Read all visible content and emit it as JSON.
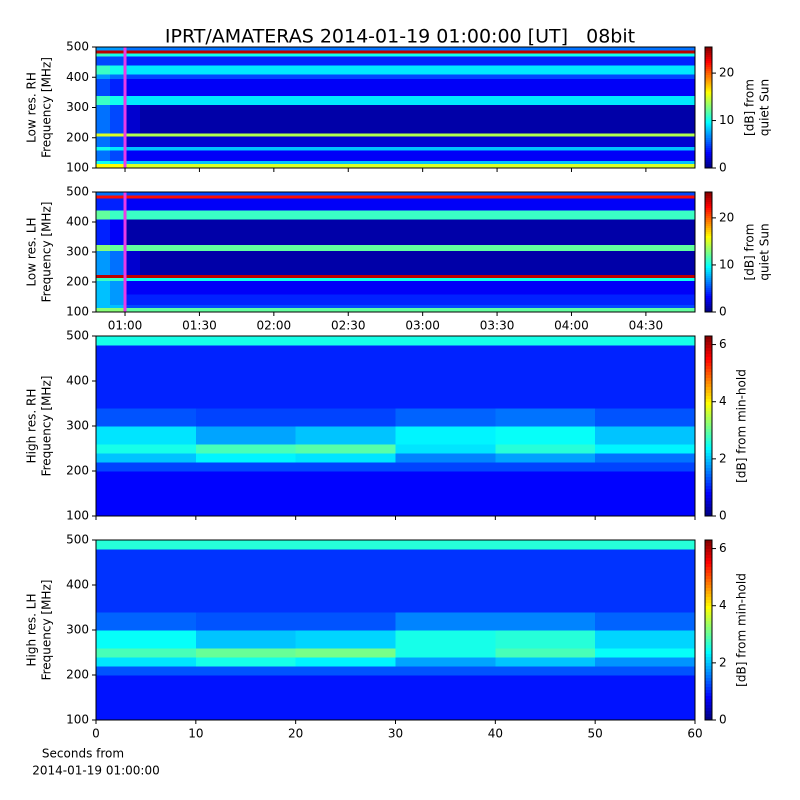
{
  "title": "IPRT/AMATERAS 2014-01-19 01:00:00 [UT]   08bit",
  "chart_data": [
    {
      "type": "heatmap",
      "ylabel": [
        "Low res. RH",
        "Frequency [MHz]"
      ],
      "colormap": "jet",
      "xlim": [
        48.3,
        289.8
      ],
      "ylim": [
        100,
        500
      ],
      "yticks": [
        100,
        200,
        300,
        400,
        500
      ],
      "xticks": [
        {
          "value": 60,
          "label": "01:00"
        },
        {
          "value": 90,
          "label": "01:30"
        },
        {
          "value": 120,
          "label": "02:00"
        },
        {
          "value": 150,
          "label": "02:30"
        },
        {
          "value": 180,
          "label": "03:00"
        },
        {
          "value": 210,
          "label": "03:30"
        },
        {
          "value": 240,
          "label": "04:00"
        },
        {
          "value": 270,
          "label": "04:30"
        }
      ],
      "xticklabels": false,
      "cursor": {
        "value": 60,
        "color": "#e83ce8"
      },
      "xbins": [
        48.3,
        54,
        60,
        66,
        289.8
      ],
      "ybins": [
        100,
        115,
        125,
        160,
        170,
        205,
        215,
        310,
        340,
        395,
        410,
        440,
        470,
        480,
        490,
        500
      ],
      "z": [
        [
          16,
          16,
          15,
          15
        ],
        [
          10,
          9,
          8,
          8
        ],
        [
          6,
          5,
          3,
          3
        ],
        [
          10,
          9,
          8,
          8
        ],
        [
          6,
          5,
          2,
          2
        ],
        [
          15,
          15,
          14,
          14
        ],
        [
          6,
          5,
          2,
          1
        ],
        [
          11,
          10,
          9,
          9
        ],
        [
          5,
          4,
          3,
          3
        ],
        [
          7,
          6,
          5,
          5
        ],
        [
          11,
          10,
          9,
          9
        ],
        [
          5,
          5,
          4,
          4
        ],
        [
          11,
          10,
          10,
          10
        ],
        [
          24,
          24,
          24,
          24
        ],
        [
          7,
          7,
          6,
          6
        ]
      ],
      "clim": [
        0,
        25.5
      ],
      "colorbar_ticks": [
        0,
        10,
        20
      ],
      "colorbar_label": [
        "[dB] from",
        "quiet Sun"
      ]
    },
    {
      "type": "heatmap",
      "ylabel": [
        "Low res. LH",
        "Frequency [MHz]"
      ],
      "colormap": "jet",
      "xlim": [
        48.3,
        289.8
      ],
      "ylim": [
        100,
        500
      ],
      "yticks": [
        100,
        200,
        300,
        400,
        500
      ],
      "xticks": [
        {
          "value": 60,
          "label": "01:00"
        },
        {
          "value": 90,
          "label": "01:30"
        },
        {
          "value": 120,
          "label": "02:00"
        },
        {
          "value": 150,
          "label": "02:30"
        },
        {
          "value": 180,
          "label": "03:00"
        },
        {
          "value": 210,
          "label": "03:30"
        },
        {
          "value": 240,
          "label": "04:00"
        },
        {
          "value": 270,
          "label": "04:30"
        }
      ],
      "xticklabels": true,
      "cursor": {
        "value": 60,
        "color": "#e83ce8"
      },
      "xbins": [
        48.3,
        54,
        60,
        66,
        289.8
      ],
      "ybins": [
        100,
        115,
        125,
        160,
        170,
        205,
        215,
        225,
        305,
        325,
        410,
        440,
        480,
        490,
        500
      ],
      "z": [
        [
          13,
          13,
          12,
          12
        ],
        [
          8,
          8,
          5,
          5
        ],
        [
          8,
          7,
          4,
          4
        ],
        [
          8,
          7,
          3,
          3
        ],
        [
          8,
          7,
          3,
          3
        ],
        [
          11,
          11,
          10,
          10
        ],
        [
          24,
          24,
          24,
          24
        ],
        [
          7,
          6,
          2,
          1
        ],
        [
          13,
          12,
          12,
          12
        ],
        [
          4,
          3,
          1,
          1
        ],
        [
          12,
          11,
          11,
          11
        ],
        [
          4,
          4,
          3,
          3
        ],
        [
          22,
          22,
          22,
          22
        ],
        [
          6,
          6,
          5,
          5
        ]
      ],
      "clim": [
        0,
        25.5
      ],
      "colorbar_ticks": [
        0,
        10,
        20
      ],
      "colorbar_label": [
        "[dB] from",
        "quiet Sun"
      ]
    },
    {
      "type": "heatmap",
      "ylabel": [
        "High res. RH",
        "Frequency [MHz]"
      ],
      "colormap": "jet",
      "xlim": [
        0,
        60
      ],
      "ylim": [
        100,
        500
      ],
      "yticks": [
        100,
        200,
        300,
        400,
        500
      ],
      "xticks": [
        0,
        10,
        20,
        30,
        40,
        50,
        60
      ],
      "xticklabels": false,
      "xbins": [
        0,
        10,
        20,
        30,
        40,
        50,
        60
      ],
      "ybins": [
        100,
        200,
        220,
        240,
        260,
        300,
        340,
        480,
        500
      ],
      "z": [
        [
          0.8,
          0.8,
          0.8,
          0.8,
          0.8,
          0.8
        ],
        [
          1.2,
          1.2,
          1.2,
          1.2,
          1.2,
          1.2
        ],
        [
          2.0,
          2.3,
          2.2,
          1.6,
          1.8,
          1.5
        ],
        [
          2.5,
          2.8,
          2.9,
          2.2,
          2.6,
          2.3
        ],
        [
          2.2,
          1.8,
          2.0,
          2.3,
          2.4,
          2.0
        ],
        [
          1.3,
          1.2,
          1.2,
          1.4,
          1.5,
          1.3
        ],
        [
          1.0,
          1.0,
          1.0,
          1.0,
          1.0,
          1.0
        ],
        [
          2.5,
          2.5,
          2.5,
          2.5,
          2.5,
          2.5
        ]
      ],
      "clim": [
        0,
        6.3
      ],
      "colorbar_ticks": [
        0,
        2,
        4,
        6
      ],
      "colorbar_label": [
        "[dB] from min-hold"
      ]
    },
    {
      "type": "heatmap",
      "ylabel": [
        "High res. LH",
        "Frequency [MHz]"
      ],
      "colormap": "jet",
      "xlim": [
        0,
        60
      ],
      "ylim": [
        100,
        500
      ],
      "yticks": [
        100,
        200,
        300,
        400,
        500
      ],
      "xticks": [
        0,
        10,
        20,
        30,
        40,
        50,
        60
      ],
      "xticklabels": true,
      "xlabel": [
        "Seconds from",
        "2014-01-19 01:00:00"
      ],
      "xbins": [
        0,
        10,
        20,
        30,
        40,
        50,
        60
      ],
      "ybins": [
        100,
        200,
        220,
        240,
        260,
        300,
        340,
        480,
        500
      ],
      "z": [
        [
          0.9,
          0.9,
          0.9,
          0.9,
          0.9,
          0.9
        ],
        [
          1.3,
          1.3,
          1.3,
          1.3,
          1.3,
          1.3
        ],
        [
          2.2,
          2.5,
          2.3,
          1.8,
          2.0,
          1.7
        ],
        [
          2.8,
          3.0,
          3.1,
          2.5,
          2.8,
          2.4
        ],
        [
          2.4,
          2.0,
          2.1,
          2.5,
          2.6,
          2.1
        ],
        [
          1.4,
          1.3,
          1.3,
          1.6,
          1.6,
          1.4
        ],
        [
          1.1,
          1.1,
          1.1,
          1.1,
          1.1,
          1.1
        ],
        [
          2.6,
          2.6,
          2.6,
          2.6,
          2.6,
          2.6
        ]
      ],
      "clim": [
        0,
        6.3
      ],
      "colorbar_ticks": [
        0,
        2,
        4,
        6
      ],
      "colorbar_label": [
        "[dB] from min-hold"
      ]
    }
  ]
}
